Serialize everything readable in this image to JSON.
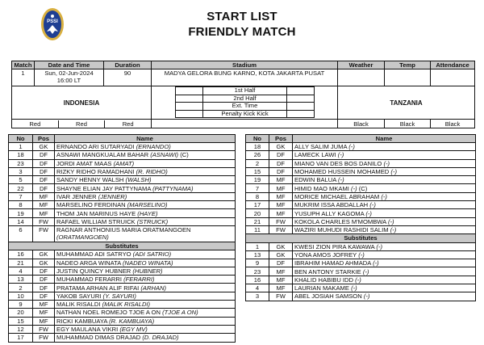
{
  "header": {
    "logo": "PSSI",
    "title": "START LIST",
    "subtitle": "FRIENDLY MATCH"
  },
  "match": {
    "headers": [
      "Match",
      "Date and Time",
      "Duration",
      "Stadium",
      "Weather",
      "Temp",
      "Attendance"
    ],
    "number": "1",
    "date": "Sun, 02-Jun-2024",
    "time": "16:00 LT",
    "duration": "90",
    "stadium": "MADYA GELORA BUNG KARNO, KOTA JAKARTA PUSAT",
    "weather": "",
    "temp": "",
    "attendance": "",
    "home_team": "INDONESIA",
    "away_team": "TANZANIA",
    "periods": [
      "1st Half",
      "2nd Half",
      "Ext. Time",
      "Penalty Kick Kick"
    ],
    "home_colors": [
      "Red",
      "Red",
      "Red"
    ],
    "away_colors": [
      "Black",
      "Black",
      "Black"
    ]
  },
  "lineup_headers": [
    "No",
    "Pos",
    "Name"
  ],
  "substitutes_label": "Substitutes",
  "home": {
    "starters": [
      {
        "no": "1",
        "pos": "GK",
        "name": "ERNANDO ARI SUTARYADI",
        "alias": "(ERNANDO)",
        "extra": ""
      },
      {
        "no": "18",
        "pos": "DF",
        "name": "ASNAWI MANGKUALAM BAHAR",
        "alias": "(ASNAWI)",
        "extra": "(C)"
      },
      {
        "no": "23",
        "pos": "DF",
        "name": "JORDI AMAT MAAS",
        "alias": "(AMAT)",
        "extra": ""
      },
      {
        "no": "3",
        "pos": "DF",
        "name": "RIZKY RIDHO RAMADHANI",
        "alias": "(R. RIDHO)",
        "extra": ""
      },
      {
        "no": "5",
        "pos": "DF",
        "name": "SANDY HENNY WALSH",
        "alias": "(WALSH)",
        "extra": ""
      },
      {
        "no": "22",
        "pos": "DF",
        "name": "SHAYNE ELIAN JAY PATTYNAMA",
        "alias": "(PATTYNAMA)",
        "extra": ""
      },
      {
        "no": "7",
        "pos": "MF",
        "name": "IVAR JENNER",
        "alias": "(JENNER)",
        "extra": ""
      },
      {
        "no": "8",
        "pos": "MF",
        "name": "MARSELINO FERDINAN",
        "alias": "(MARSELINO)",
        "extra": ""
      },
      {
        "no": "19",
        "pos": "MF",
        "name": "THOM JAN MARINUS HAYE",
        "alias": "(HAYE)",
        "extra": ""
      },
      {
        "no": "14",
        "pos": "FW",
        "name": "RAFAEL WILLIAM STRUICK",
        "alias": "(STRUICK)",
        "extra": ""
      },
      {
        "no": "6",
        "pos": "FW",
        "name": "RAGNAR ANTHONIUS MARIA ORATMANGOEN",
        "alias": "(ORATMANGOEN)",
        "extra": ""
      }
    ],
    "subs": [
      {
        "no": "16",
        "pos": "GK",
        "name": "MUHAMMAD ADI SATRYO",
        "alias": "(ADI SATRIO)",
        "extra": ""
      },
      {
        "no": "21",
        "pos": "GK",
        "name": "NADEO ARGA WINATA",
        "alias": "(NADEO WINATA)",
        "extra": ""
      },
      {
        "no": "4",
        "pos": "DF",
        "name": "JUSTIN QUINCY HUBNER",
        "alias": "(HUBNER)",
        "extra": ""
      },
      {
        "no": "13",
        "pos": "DF",
        "name": "MUHAMMAD FERARRI",
        "alias": "(FERARRI)",
        "extra": ""
      },
      {
        "no": "2",
        "pos": "DF",
        "name": "PRATAMA ARHAN ALIF RIFAI",
        "alias": "(ARHAN)",
        "extra": ""
      },
      {
        "no": "10",
        "pos": "DF",
        "name": "YAKOB SAYURI",
        "alias": "(Y. SAYURI)",
        "extra": ""
      },
      {
        "no": "9",
        "pos": "MF",
        "name": "MALIK RISALDI",
        "alias": "(MALIK RISALDI)",
        "extra": ""
      },
      {
        "no": "20",
        "pos": "MF",
        "name": "NATHAN NOEL ROMEJO TJOE A ON",
        "alias": "(TJOE A ON)",
        "extra": ""
      },
      {
        "no": "15",
        "pos": "MF",
        "name": "RICKI KAMBUAYA",
        "alias": "(R. KAMBUAYA)",
        "extra": ""
      },
      {
        "no": "12",
        "pos": "FW",
        "name": "EGY MAULANA VIKRI",
        "alias": "(EGY MV)",
        "extra": ""
      },
      {
        "no": "17",
        "pos": "FW",
        "name": "MUHAMMAD DIMAS DRAJAD",
        "alias": "(D. DRAJAD)",
        "extra": ""
      }
    ]
  },
  "away": {
    "starters": [
      {
        "no": "18",
        "pos": "GK",
        "name": "ALLY SALIM JUMA",
        "alias": "(-)",
        "extra": ""
      },
      {
        "no": "26",
        "pos": "DF",
        "name": "LAMECK LAWI",
        "alias": "(-)",
        "extra": ""
      },
      {
        "no": "2",
        "pos": "DF",
        "name": "MIANO VAN DES BOS DANILO",
        "alias": "(-)",
        "extra": ""
      },
      {
        "no": "15",
        "pos": "DF",
        "name": "MOHAMED HUSSEIN MOHAMED",
        "alias": "(-)",
        "extra": ""
      },
      {
        "no": "19",
        "pos": "MF",
        "name": "EDWIN BALUA",
        "alias": "(-)",
        "extra": ""
      },
      {
        "no": "7",
        "pos": "MF",
        "name": "HIMID MAO MKAMI",
        "alias": "(-)",
        "extra": "(C)"
      },
      {
        "no": "8",
        "pos": "MF",
        "name": "MORICE MICHAEL ABRAHAM",
        "alias": "(-)",
        "extra": ""
      },
      {
        "no": "17",
        "pos": "MF",
        "name": "MUKRIM ISSA ABDALLAH",
        "alias": "(-)",
        "extra": ""
      },
      {
        "no": "20",
        "pos": "MF",
        "name": "YUSUPH ALLY KAGOMA",
        "alias": "(-)",
        "extra": ""
      },
      {
        "no": "21",
        "pos": "FW",
        "name": "KOKOLA CHARLES M'MOMBWA",
        "alias": "(-)",
        "extra": ""
      },
      {
        "no": "11",
        "pos": "FW",
        "name": "WAZIRI MUHUDI RASHIDI SALIM",
        "alias": "(-)",
        "extra": ""
      }
    ],
    "subs": [
      {
        "no": "1",
        "pos": "GK",
        "name": "KWESI ZION PIRA KAWAWA",
        "alias": "(-)",
        "extra": ""
      },
      {
        "no": "13",
        "pos": "GK",
        "name": "YONA AMOS JOFREY",
        "alias": "(-)",
        "extra": ""
      },
      {
        "no": "9",
        "pos": "DF",
        "name": "IBRAHIM HAMAD AHMADA",
        "alias": "(-)",
        "extra": ""
      },
      {
        "no": "23",
        "pos": "MF",
        "name": "BEN ANTONY STARKIE",
        "alias": "(-)",
        "extra": ""
      },
      {
        "no": "16",
        "pos": "MF",
        "name": "KHALID HABIBU IDD",
        "alias": "(-)",
        "extra": ""
      },
      {
        "no": "4",
        "pos": "MF",
        "name": "LAURIAN MAKAME",
        "alias": "(-)",
        "extra": ""
      },
      {
        "no": "3",
        "pos": "FW",
        "name": "ABEL JOSIAH SAMSON",
        "alias": "(-)",
        "extra": ""
      }
    ]
  }
}
